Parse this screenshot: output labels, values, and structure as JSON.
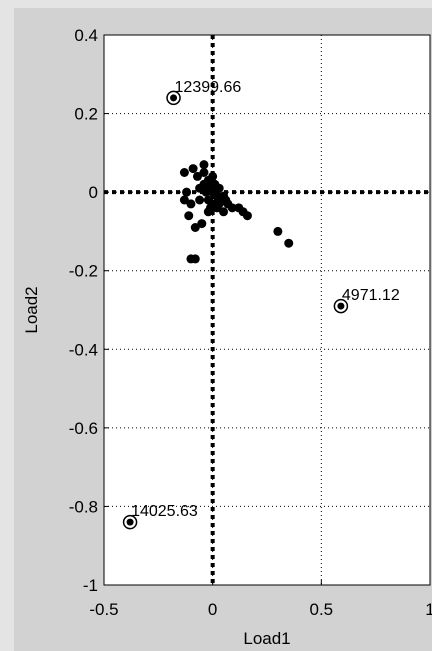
{
  "chart_data": {
    "type": "scatter",
    "title": "",
    "xlabel": "Load1",
    "ylabel": "Load2",
    "xlim": [
      -0.5,
      1
    ],
    "ylim": [
      -1,
      0.4
    ],
    "xticks": [
      "-0.5",
      "0",
      "0.5",
      "1"
    ],
    "yticks": [
      "-1",
      "-0.8",
      "-0.6",
      "-0.4",
      "-0.2",
      "0",
      "0.2",
      "0.4"
    ],
    "grid": true,
    "reference_lines": {
      "x": 0,
      "y": 0
    },
    "marker_color": "#000000",
    "labeled_points": [
      {
        "label": "12399.66",
        "x": -0.18,
        "y": 0.24
      },
      {
        "label": "4971.12",
        "x": 0.59,
        "y": -0.29
      },
      {
        "label": "14025.63",
        "x": -0.38,
        "y": -0.84
      }
    ],
    "points": [
      {
        "x": -0.13,
        "y": 0.05
      },
      {
        "x": -0.09,
        "y": 0.06
      },
      {
        "x": -0.07,
        "y": 0.04
      },
      {
        "x": -0.04,
        "y": 0.07
      },
      {
        "x": -0.06,
        "y": 0.01
      },
      {
        "x": -0.04,
        "y": 0.02
      },
      {
        "x": -0.03,
        "y": 0.0
      },
      {
        "x": -0.02,
        "y": 0.03
      },
      {
        "x": -0.01,
        "y": 0.01
      },
      {
        "x": 0.0,
        "y": 0.0
      },
      {
        "x": 0.01,
        "y": 0.02
      },
      {
        "x": 0.02,
        "y": -0.01
      },
      {
        "x": 0.03,
        "y": 0.01
      },
      {
        "x": 0.04,
        "y": -0.02
      },
      {
        "x": 0.05,
        "y": -0.01
      },
      {
        "x": 0.01,
        "y": -0.03
      },
      {
        "x": -0.02,
        "y": -0.02
      },
      {
        "x": -0.01,
        "y": -0.04
      },
      {
        "x": 0.02,
        "y": -0.04
      },
      {
        "x": -0.12,
        "y": 0.0
      },
      {
        "x": -0.13,
        "y": -0.02
      },
      {
        "x": -0.1,
        "y": -0.03
      },
      {
        "x": -0.06,
        "y": -0.02
      },
      {
        "x": 0.06,
        "y": -0.02
      },
      {
        "x": 0.07,
        "y": -0.03
      },
      {
        "x": 0.09,
        "y": -0.04
      },
      {
        "x": 0.12,
        "y": -0.04
      },
      {
        "x": 0.14,
        "y": -0.05
      },
      {
        "x": 0.16,
        "y": -0.06
      },
      {
        "x": 0.05,
        "y": -0.05
      },
      {
        "x": -0.08,
        "y": -0.09
      },
      {
        "x": -0.05,
        "y": -0.08
      },
      {
        "x": -0.02,
        "y": -0.05
      },
      {
        "x": -0.11,
        "y": -0.06
      },
      {
        "x": 0.3,
        "y": -0.1
      },
      {
        "x": 0.35,
        "y": -0.13
      },
      {
        "x": -0.1,
        "y": -0.17
      },
      {
        "x": -0.08,
        "y": -0.17
      },
      {
        "x": -0.04,
        "y": 0.05
      },
      {
        "x": 0.0,
        "y": 0.04
      },
      {
        "x": 0.03,
        "y": -0.03
      }
    ]
  }
}
